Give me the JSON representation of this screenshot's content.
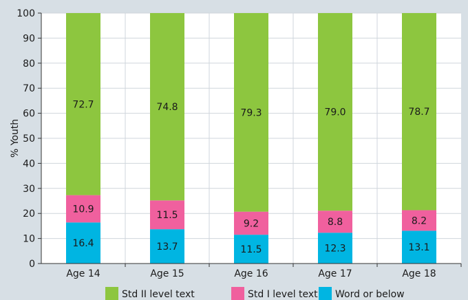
{
  "chart_data": {
    "type": "bar",
    "stacked": true,
    "categories": [
      "Age 14",
      "Age 15",
      "Age 16",
      "Age 17",
      "Age 18"
    ],
    "series": [
      {
        "name": "Word or below",
        "color": "#00b5e2",
        "values": [
          16.4,
          13.7,
          11.5,
          12.3,
          13.1
        ],
        "labels": [
          "16.4",
          "13.7",
          "11.5",
          "12.3",
          "13.1"
        ]
      },
      {
        "name": "Std I level text",
        "color": "#f0609e",
        "values": [
          10.9,
          11.5,
          9.2,
          8.8,
          8.2
        ],
        "labels": [
          "10.9",
          "11.5",
          "9.2",
          "8.8",
          "8.2"
        ]
      },
      {
        "name": "Std II level text",
        "color": "#8dc63f",
        "values": [
          72.7,
          74.8,
          79.3,
          79.0,
          78.7
        ],
        "labels": [
          "72.7",
          "74.8",
          "79.3",
          "79.0",
          "78.7"
        ]
      }
    ],
    "legend_order": [
      "Std II level text",
      "Std I level text",
      "Word or below"
    ],
    "legend_position": "bottom",
    "ylabel": "% Youth",
    "xlabel": "",
    "ylim": [
      0,
      100
    ],
    "yticks": [
      0,
      10,
      20,
      30,
      40,
      50,
      60,
      70,
      80,
      90,
      100
    ],
    "grid": true
  }
}
